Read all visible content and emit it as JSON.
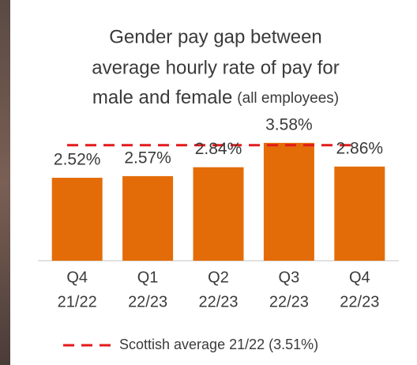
{
  "chart_data": {
    "type": "bar",
    "title": [
      "Gender pay gap between",
      "average hourly rate of pay for",
      "male and female"
    ],
    "title_note": "(all employees)",
    "categories": [
      [
        "Q4",
        "21/22"
      ],
      [
        "Q1",
        "22/23"
      ],
      [
        "Q2",
        "22/23"
      ],
      [
        "Q3",
        "22/23"
      ],
      [
        "Q4",
        "22/23"
      ]
    ],
    "values": [
      2.52,
      2.57,
      2.84,
      3.58,
      2.86
    ],
    "value_labels": [
      "2.52%",
      "2.57%",
      "2.84%",
      "3.58%",
      "2.86%"
    ],
    "color": "#e36c09",
    "ylim": [
      0,
      3.6
    ],
    "reference_line": {
      "value": 3.51,
      "label": "Scottish average 21/22 (3.51%)",
      "color": "#e31a1a"
    }
  }
}
